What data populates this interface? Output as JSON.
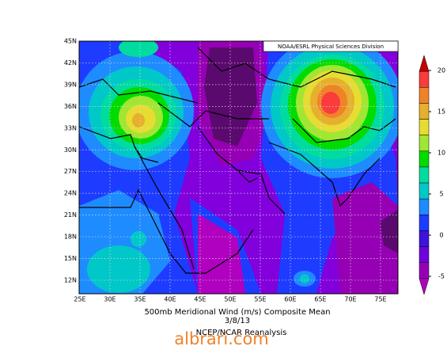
{
  "map": {
    "credit": "NOAA/ESRL Physical Sciences Division",
    "lat_labels": [
      "45N",
      "42N",
      "39N",
      "36N",
      "33N",
      "30N",
      "27N",
      "24N",
      "21N",
      "18N",
      "15N",
      "12N"
    ],
    "lon_labels": [
      "25E",
      "30E",
      "35E",
      "40E",
      "45E",
      "50E",
      "55E",
      "60E",
      "65E",
      "70E",
      "75E"
    ],
    "colorbar": {
      "ticks": [
        20,
        15,
        10,
        5,
        0,
        -5
      ]
    },
    "title": "500mb Meridional Wind (m/s) Composite Mean",
    "date": "3/8/13",
    "source": "NCEP/NCAR Reanalysis",
    "watermark": "albrari.com"
  }
}
